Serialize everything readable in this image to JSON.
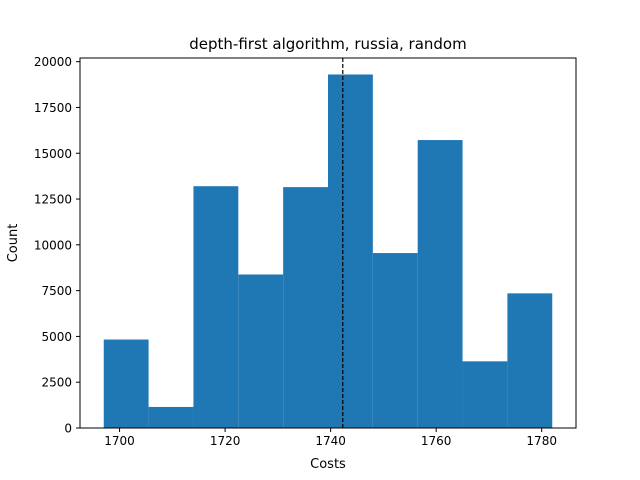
{
  "chart_data": {
    "type": "bar",
    "title": "depth-first algorithm, russia, random",
    "xlabel": "Costs",
    "ylabel": "Count",
    "xlim": [
      1692.5,
      1786.5
    ],
    "ylim": [
      0,
      20200
    ],
    "bins": [
      {
        "x0": 1697,
        "x1": 1705.5,
        "count": 4830
      },
      {
        "x0": 1705.5,
        "x1": 1714,
        "count": 1150
      },
      {
        "x0": 1714,
        "x1": 1722.5,
        "count": 13200
      },
      {
        "x0": 1722.5,
        "x1": 1731,
        "count": 8380
      },
      {
        "x0": 1731,
        "x1": 1739.5,
        "count": 13150
      },
      {
        "x0": 1739.5,
        "x1": 1748,
        "count": 19300
      },
      {
        "x0": 1748,
        "x1": 1756.5,
        "count": 9550
      },
      {
        "x0": 1756.5,
        "x1": 1765,
        "count": 15720
      },
      {
        "x0": 1765,
        "x1": 1773.5,
        "count": 3640
      },
      {
        "x0": 1773.5,
        "x1": 1782,
        "count": 7350
      }
    ],
    "mean_line": {
      "x": 1742.3,
      "style": "dashed"
    },
    "xticks": [
      1700,
      1720,
      1740,
      1760,
      1780
    ],
    "xtick_labels": [
      "1700",
      "1720",
      "1740",
      "1760",
      "1780"
    ],
    "yticks": [
      0,
      2500,
      5000,
      7500,
      10000,
      12500,
      15000,
      17500,
      20000
    ],
    "ytick_labels": [
      "0",
      "2500",
      "5000",
      "7500",
      "10000",
      "12500",
      "15000",
      "17500",
      "20000"
    ],
    "bar_color": "#1f77b4",
    "grid": false
  }
}
